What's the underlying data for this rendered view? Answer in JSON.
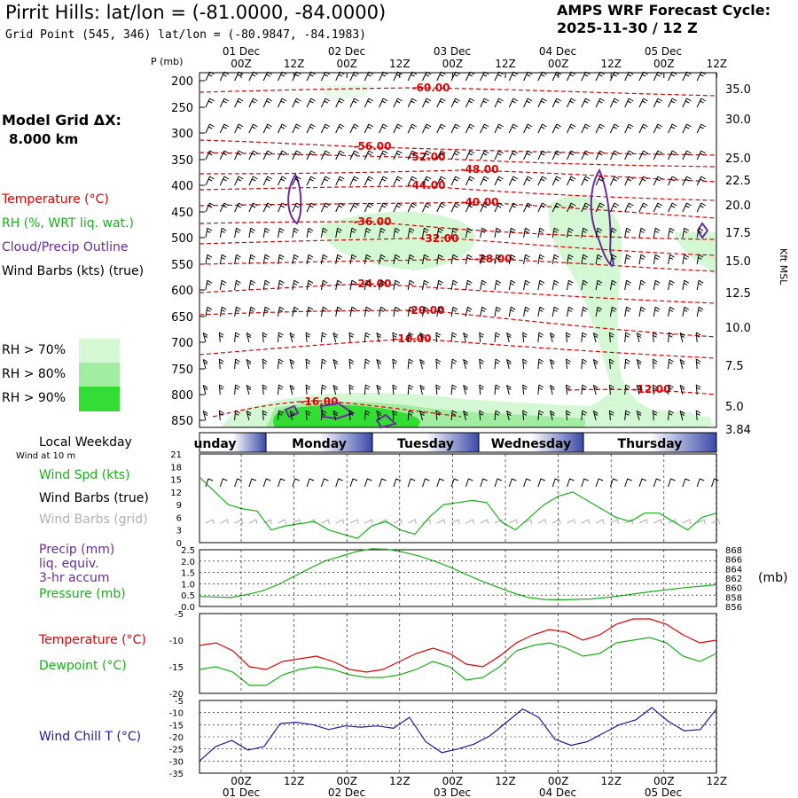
{
  "header": {
    "title": "Pirrit Hills:  lat/lon = (-81.0000, -84.0000)",
    "gridpoint": "Grid Point (545, 346) lat/lon = (-80.9847, -84.1983)",
    "cycle_line1": "AMPS WRF Forecast Cycle:",
    "cycle_line2": "2025-11-30 / 12  Z"
  },
  "left_legend": {
    "model_grid": "Model Grid ΔX:",
    "model_dx": "8.000 km",
    "temperature": "Temperature (°C)",
    "rh": "RH (%, WRT liq. wat.)",
    "cloud": "Cloud/Precip Outline",
    "wind_barbs": "Wind Barbs (kts) (true)",
    "rh70": "RH > 70%",
    "rh80": "RH > 80%",
    "rh90": "RH > 90%",
    "local_weekday": "Local Weekday",
    "wind10m": "Wind at 10 m",
    "wind_spd": "Wind Spd (kts)",
    "barbs_true": "Wind Barbs (true)",
    "barbs_grid": "Wind Barbs (grid)",
    "precip": "Precip (mm)",
    "liq": "liq. equiv.",
    "accum": "3-hr accum",
    "pressure": "Pressure (mb)",
    "temp2": "Temperature (°C)",
    "dewpoint": "Dewpoint (°C)",
    "windchill": "Wind Chill T (°C)",
    "mb_unit": "(mb)"
  },
  "colors": {
    "temp_red": "#e00000",
    "rh_green": "#18b018",
    "cloud_purple": "#6a2a9a",
    "windchill_blue": "#1a1aa0",
    "rh70": "#d4f7d4",
    "rh80": "#a3eda3",
    "rh90": "#33dd33",
    "barbs_grid": "#b0b0b0"
  },
  "time_axis": {
    "hour_labels": [
      "00Z",
      "12Z",
      "00Z",
      "12Z",
      "00Z",
      "12Z",
      "00Z",
      "12Z",
      "00Z",
      "12Z"
    ],
    "date_labels": [
      "01 Dec",
      "02 Dec",
      "03 Dec",
      "04 Dec",
      "05 Dec"
    ],
    "weekday_labels": [
      "unday",
      "Monday",
      "Tuesday",
      "Wednesday",
      "Thursday"
    ]
  },
  "chart_data": [
    {
      "type": "heatmap",
      "title": "",
      "ylabel": "P (mb)",
      "ylabel_right": "Kft MSL",
      "pressure_ticks": [
        "200",
        "250",
        "300",
        "350",
        "400",
        "450",
        "500",
        "550",
        "600",
        "650",
        "700",
        "750",
        "800",
        "850"
      ],
      "kft_ticks": [
        "35.0",
        "30.0",
        "25.0",
        "22.5",
        "20.0",
        "17.5",
        "15.0",
        "12.5",
        "10.0",
        "7.5",
        "5.0",
        "3.84"
      ],
      "temperature_contours": [
        "-60.00",
        "-56.00",
        "-52.00",
        "-48.00",
        "-44.00",
        "-40.00",
        "-36.00",
        "-32.00",
        "-28.00",
        "-24.00",
        "-20.00",
        "-16.00",
        "-16.00",
        "-12.00"
      ]
    },
    {
      "type": "line",
      "title": "",
      "ylabel": "Wind Spd (kts)",
      "y_ticks": [
        "21",
        "18",
        "15",
        "12",
        "9",
        "6",
        "3",
        "0"
      ],
      "ylim": [
        0,
        21
      ],
      "x_hours": [
        0,
        6,
        9,
        12,
        15,
        18,
        21,
        24,
        27,
        30,
        33,
        36,
        39,
        42,
        45,
        48,
        51,
        54,
        57,
        60,
        63,
        66,
        69,
        72,
        75,
        78,
        81,
        84,
        87,
        90,
        93,
        96,
        99,
        102,
        105,
        108
      ],
      "series": [
        {
          "name": "Wind Spd",
          "values": [
            15.5,
            9,
            8,
            7.5,
            3,
            4,
            4.5,
            5,
            3,
            2,
            1,
            4,
            5,
            3,
            2,
            6,
            9,
            9.5,
            10,
            9.5,
            5,
            3,
            6,
            9,
            11,
            12,
            10,
            8,
            6,
            5,
            7,
            7,
            5,
            3,
            6,
            7
          ]
        }
      ]
    },
    {
      "type": "line",
      "title": "",
      "y_ticks_left": [
        "2.5",
        "2.0",
        "1.5",
        "1.0",
        "0.5",
        "0.0"
      ],
      "y_ticks_right": [
        "868",
        "866",
        "864",
        "862",
        "860",
        "858",
        "856"
      ],
      "ylim_left": [
        0,
        2.5
      ],
      "ylim_right": [
        856,
        868
      ],
      "series": [
        {
          "name": "Pressure",
          "values": [
            858.1,
            858.0,
            857.9,
            858.5,
            859.3,
            860.6,
            862.3,
            864.0,
            865.6,
            866.6,
            867.6,
            868.2,
            868.1,
            867.5,
            866.7,
            865.6,
            864.3,
            862.8,
            861.4,
            860.1,
            858.9,
            857.9,
            857.5,
            857.4,
            857.5,
            857.6,
            857.9,
            858.3,
            858.8,
            859.2,
            859.6,
            860.0,
            860.3,
            860.6
          ]
        },
        {
          "name": "Precip",
          "values": [
            0,
            0,
            0,
            0,
            0,
            0,
            0,
            0,
            0,
            0,
            0,
            0,
            0,
            0,
            0,
            0,
            0,
            0,
            0,
            0,
            0,
            0,
            0,
            0,
            0,
            0,
            0,
            0,
            0,
            0,
            0,
            0,
            0,
            0
          ]
        }
      ]
    },
    {
      "type": "line",
      "title": "",
      "y_ticks": [
        "-5",
        "-10",
        "-15",
        "-20"
      ],
      "ylim": [
        -20,
        -5
      ],
      "series": [
        {
          "name": "Temperature",
          "values": [
            -11,
            -10.5,
            -12,
            -15,
            -15.5,
            -14,
            -13.5,
            -13,
            -14,
            -15.5,
            -16,
            -15.5,
            -14,
            -12.5,
            -11.5,
            -12.5,
            -14.5,
            -15,
            -13,
            -10.5,
            -9,
            -8,
            -8.5,
            -10,
            -9,
            -7,
            -6,
            -6,
            -7,
            -9,
            -10.5,
            -10
          ]
        },
        {
          "name": "Dewpoint",
          "values": [
            -15.5,
            -15,
            -16,
            -18.5,
            -18.5,
            -16.5,
            -15.5,
            -15,
            -15.5,
            -16.5,
            -17,
            -17,
            -16.5,
            -15.5,
            -14,
            -15,
            -17.5,
            -17,
            -15,
            -12,
            -11,
            -10.5,
            -11.5,
            -13,
            -12.5,
            -10.5,
            -10,
            -9.5,
            -10.5,
            -13,
            -14,
            -12.5
          ]
        }
      ]
    },
    {
      "type": "line",
      "title": "",
      "y_ticks": [
        "-5",
        "-10",
        "-15",
        "-20",
        "-25",
        "-30",
        "-35"
      ],
      "ylim": [
        -35,
        -5
      ],
      "series": [
        {
          "name": "Wind Chill T",
          "values": [
            -30,
            -24,
            -21.5,
            -25.5,
            -24,
            -14.5,
            -14,
            -15,
            -17,
            -15.5,
            -16,
            -15.5,
            -16.5,
            -12,
            -22,
            -26.5,
            -25,
            -23,
            -19.5,
            -14,
            -8.5,
            -12,
            -21,
            -23.5,
            -22,
            -18.5,
            -15,
            -13,
            -8,
            -13.5,
            -17.5,
            -17,
            -8.5
          ]
        }
      ]
    }
  ]
}
